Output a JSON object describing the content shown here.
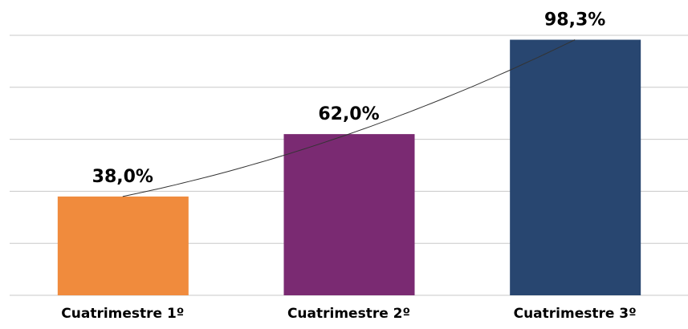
{
  "chart_data": {
    "type": "bar",
    "categories": [
      "Cuatrimestre 1º",
      "Cuatrimestre 2º",
      "Cuatrimestre 3º"
    ],
    "values": [
      38.0,
      62.0,
      98.3
    ],
    "value_labels": [
      "38,0%",
      "62,0%",
      "98,3%"
    ],
    "colors": [
      "#f08b3d",
      "#7a2a72",
      "#284670"
    ],
    "ylim": [
      0,
      100
    ],
    "yticks": [
      0,
      20,
      40,
      60,
      80,
      100
    ],
    "grid": true,
    "trendline": true
  }
}
